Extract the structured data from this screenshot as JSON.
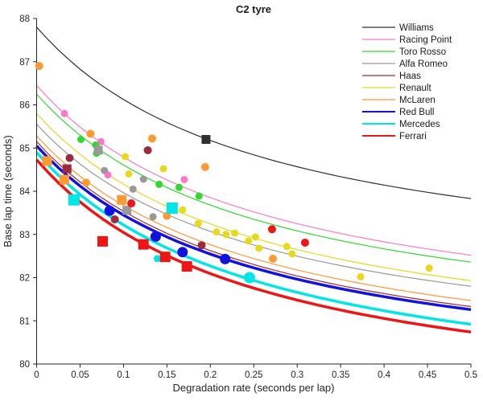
{
  "window": {
    "background": "#ffffff"
  },
  "chart_data": {
    "type": "scatter",
    "title": "C2 tyre",
    "xlabel": "Degradation rate (seconds per lap)",
    "ylabel": "Base lap time (seconds)",
    "xlim": [
      0,
      0.5
    ],
    "ylim": [
      80,
      88
    ],
    "x_ticks": [
      "0",
      "0.05",
      "0.1",
      "0.15",
      "0.2",
      "0.25",
      "0.3",
      "0.35",
      "0.4",
      "0.45",
      "0.5"
    ],
    "y_ticks": [
      "80",
      "81",
      "82",
      "83",
      "84",
      "85",
      "86",
      "87",
      "88"
    ],
    "grid": false,
    "legend_position": "top-right",
    "curve_model": "y = end + (start-end) * ((1/(x+0.26) - 1/0.76) / (1/0.26 - 1/0.76)), x in [0,0.5]",
    "marker_legend": "circles = stint estimates, squares = race markers; size in px",
    "series": [
      {
        "name": "Williams",
        "color": "#303030",
        "line_width": 1.2,
        "curve_start": 87.8,
        "curve_end": 83.83,
        "points": [
          {
            "x": 0.195,
            "y": 85.2,
            "marker": "square",
            "size": 11
          }
        ]
      },
      {
        "name": "Racing Point",
        "color": "#ff77c8",
        "line_width": 1.2,
        "curve_start": 86.45,
        "curve_end": 82.52,
        "points": [
          {
            "x": 0.032,
            "y": 85.8,
            "marker": "circle",
            "size": 9
          },
          {
            "x": 0.074,
            "y": 85.15,
            "marker": "circle",
            "size": 9
          },
          {
            "x": 0.082,
            "y": 84.38,
            "marker": "circle",
            "size": 9
          },
          {
            "x": 0.17,
            "y": 84.27,
            "marker": "circle",
            "size": 9
          }
        ]
      },
      {
        "name": "Toro Rosso",
        "color": "#2fd92f",
        "line_width": 1.2,
        "curve_start": 86.25,
        "curve_end": 82.36,
        "points": [
          {
            "x": 0.051,
            "y": 85.2,
            "marker": "circle",
            "size": 9
          },
          {
            "x": 0.068,
            "y": 85.07,
            "marker": "circle",
            "size": 9
          },
          {
            "x": 0.069,
            "y": 84.88,
            "marker": "circle",
            "size": 9
          },
          {
            "x": 0.141,
            "y": 84.16,
            "marker": "circle",
            "size": 9
          },
          {
            "x": 0.164,
            "y": 84.09,
            "marker": "circle",
            "size": 9
          },
          {
            "x": 0.187,
            "y": 83.89,
            "marker": "circle",
            "size": 9
          }
        ]
      },
      {
        "name": "Alfa Romeo",
        "color": "#999999",
        "line_width": 1.2,
        "curve_start": 85.55,
        "curve_end": 81.8,
        "points": [
          {
            "x": 0.071,
            "y": 84.95,
            "marker": "square",
            "size": 11
          },
          {
            "x": 0.078,
            "y": 84.48,
            "marker": "circle",
            "size": 9
          },
          {
            "x": 0.111,
            "y": 84.05,
            "marker": "circle",
            "size": 9
          },
          {
            "x": 0.123,
            "y": 84.28,
            "marker": "circle",
            "size": 9
          },
          {
            "x": 0.134,
            "y": 83.41,
            "marker": "circle",
            "size": 9
          },
          {
            "x": 0.104,
            "y": 83.56,
            "marker": "square",
            "size": 11
          }
        ]
      },
      {
        "name": "Haas",
        "color": "#9b2b3d",
        "line_width": 1.2,
        "curve_start": 85.15,
        "curve_end": 81.33,
        "points": [
          {
            "x": 0.038,
            "y": 84.77,
            "marker": "circle",
            "size": 10
          },
          {
            "x": 0.035,
            "y": 84.52,
            "marker": "square",
            "size": 11
          },
          {
            "x": 0.128,
            "y": 84.95,
            "marker": "circle",
            "size": 10
          },
          {
            "x": 0.09,
            "y": 83.35,
            "marker": "circle",
            "size": 10
          },
          {
            "x": 0.19,
            "y": 82.75,
            "marker": "circle",
            "size": 10
          }
        ]
      },
      {
        "name": "Renault",
        "color": "#e8d81e",
        "line_width": 1.2,
        "curve_start": 85.8,
        "curve_end": 81.93,
        "points": [
          {
            "x": 0.102,
            "y": 84.8,
            "marker": "circle",
            "size": 9
          },
          {
            "x": 0.106,
            "y": 84.4,
            "marker": "circle",
            "size": 9
          },
          {
            "x": 0.146,
            "y": 84.52,
            "marker": "circle",
            "size": 9
          },
          {
            "x": 0.168,
            "y": 83.57,
            "marker": "circle",
            "size": 9
          },
          {
            "x": 0.186,
            "y": 83.25,
            "marker": "circle",
            "size": 9
          },
          {
            "x": 0.207,
            "y": 83.06,
            "marker": "circle",
            "size": 9
          },
          {
            "x": 0.218,
            "y": 83.0,
            "marker": "circle",
            "size": 9
          },
          {
            "x": 0.228,
            "y": 83.03,
            "marker": "circle",
            "size": 9
          },
          {
            "x": 0.244,
            "y": 82.85,
            "marker": "circle",
            "size": 9
          },
          {
            "x": 0.252,
            "y": 82.94,
            "marker": "circle",
            "size": 9
          },
          {
            "x": 0.256,
            "y": 82.68,
            "marker": "circle",
            "size": 9
          },
          {
            "x": 0.288,
            "y": 82.72,
            "marker": "circle",
            "size": 9
          },
          {
            "x": 0.294,
            "y": 82.55,
            "marker": "circle",
            "size": 9
          },
          {
            "x": 0.373,
            "y": 82.02,
            "marker": "circle",
            "size": 9
          },
          {
            "x": 0.452,
            "y": 82.22,
            "marker": "circle",
            "size": 9
          }
        ]
      },
      {
        "name": "McLaren",
        "color": "#ff9933",
        "line_width": 1.2,
        "curve_start": 85.28,
        "curve_end": 81.47,
        "points": [
          {
            "x": 0.003,
            "y": 86.9,
            "marker": "circle",
            "size": 10
          },
          {
            "x": 0.012,
            "y": 84.7,
            "marker": "square",
            "size": 12
          },
          {
            "x": 0.032,
            "y": 84.27,
            "marker": "square",
            "size": 12
          },
          {
            "x": 0.057,
            "y": 84.2,
            "marker": "circle",
            "size": 10
          },
          {
            "x": 0.062,
            "y": 85.33,
            "marker": "circle",
            "size": 10
          },
          {
            "x": 0.133,
            "y": 85.22,
            "marker": "circle",
            "size": 10
          },
          {
            "x": 0.098,
            "y": 83.8,
            "marker": "square",
            "size": 12
          },
          {
            "x": 0.15,
            "y": 83.43,
            "marker": "circle",
            "size": 10
          },
          {
            "x": 0.194,
            "y": 84.56,
            "marker": "circle",
            "size": 10
          },
          {
            "x": 0.272,
            "y": 82.44,
            "marker": "circle",
            "size": 10
          }
        ]
      },
      {
        "name": "Red Bull",
        "color": "#1212dd",
        "line_width": 3.5,
        "curve_start": 85.05,
        "curve_end": 81.26,
        "points": [
          {
            "x": 0.084,
            "y": 83.55,
            "marker": "circle",
            "size": 13
          },
          {
            "x": 0.137,
            "y": 82.95,
            "marker": "circle",
            "size": 13
          },
          {
            "x": 0.168,
            "y": 82.59,
            "marker": "circle",
            "size": 13
          },
          {
            "x": 0.217,
            "y": 82.43,
            "marker": "circle",
            "size": 13
          }
        ]
      },
      {
        "name": "Mercedes",
        "color": "#00e6e6",
        "line_width": 3.5,
        "curve_start": 84.9,
        "curve_end": 80.92,
        "points": [
          {
            "x": 0.043,
            "y": 83.8,
            "marker": "square",
            "size": 14
          },
          {
            "x": 0.156,
            "y": 83.61,
            "marker": "square",
            "size": 14
          },
          {
            "x": 0.139,
            "y": 82.44,
            "marker": "circle",
            "size": 9
          },
          {
            "x": 0.245,
            "y": 82.0,
            "marker": "circle",
            "size": 14
          }
        ]
      },
      {
        "name": "Ferrari",
        "color": "#ee1515",
        "line_width": 3.5,
        "curve_start": 84.73,
        "curve_end": 80.74,
        "points": [
          {
            "x": 0.109,
            "y": 83.72,
            "marker": "circle",
            "size": 10
          },
          {
            "x": 0.076,
            "y": 82.84,
            "marker": "square",
            "size": 13
          },
          {
            "x": 0.123,
            "y": 82.77,
            "marker": "square",
            "size": 13
          },
          {
            "x": 0.148,
            "y": 82.48,
            "marker": "square",
            "size": 13
          },
          {
            "x": 0.173,
            "y": 82.26,
            "marker": "square",
            "size": 13
          },
          {
            "x": 0.271,
            "y": 83.12,
            "marker": "circle",
            "size": 10
          },
          {
            "x": 0.309,
            "y": 82.81,
            "marker": "circle",
            "size": 10
          }
        ]
      }
    ]
  }
}
